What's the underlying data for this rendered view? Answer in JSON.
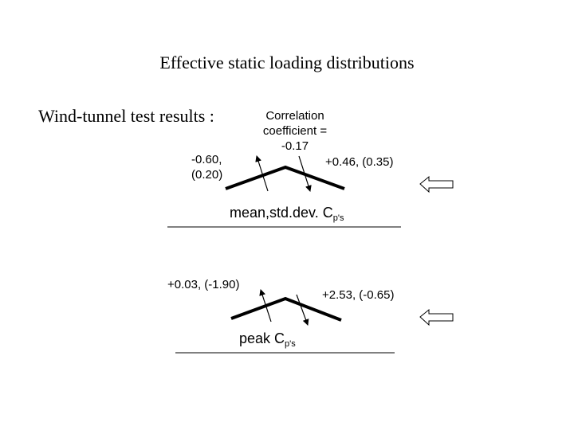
{
  "title": "Effective static loading distributions",
  "subtitle": "Wind-tunnel test results :",
  "correlation": {
    "lines": [
      "Correlation",
      "coefficient =",
      "-0.17"
    ]
  },
  "panels": [
    {
      "left_label": {
        "lines": [
          "-0.60,",
          "(0.20)"
        ]
      },
      "right_label": "+0.46, (0.35)",
      "caption": "mean,std.dev. C",
      "caption_sub": "p's"
    },
    {
      "left_label": {
        "lines": [
          "+0.03, (-1.90)"
        ]
      },
      "right_label": "+2.53, (-0.65)",
      "caption": "peak C",
      "caption_sub": "p's"
    }
  ]
}
